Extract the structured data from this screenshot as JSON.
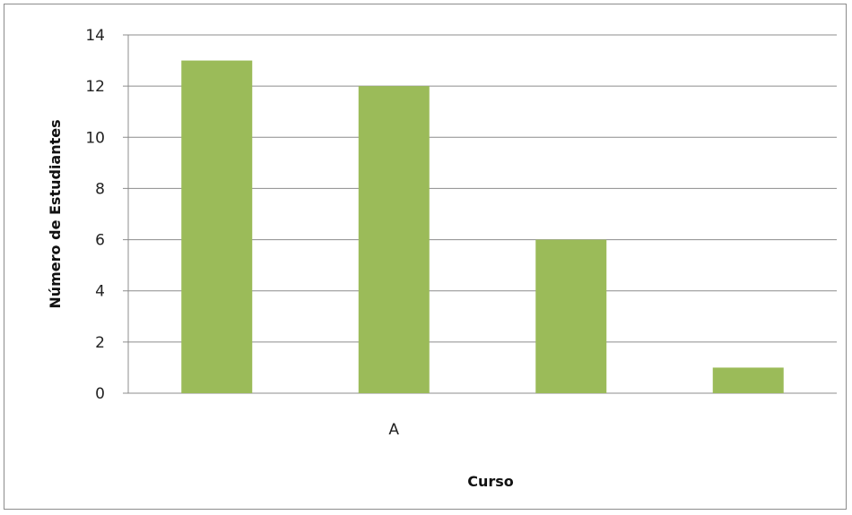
{
  "chart_data": {
    "type": "bar",
    "categories": [
      "",
      "A",
      "",
      ""
    ],
    "values": [
      13,
      12,
      6,
      1
    ],
    "xlabel": "Curso",
    "ylabel": "Número de Estudiantes",
    "ylim": [
      0,
      14
    ],
    "yticks": [
      "0",
      "2",
      "4",
      "6",
      "8",
      "10",
      "12",
      "14"
    ],
    "grid": true,
    "legend": "none",
    "bar_color": "#9bbb59",
    "grid_color": "#8c8c8c"
  }
}
